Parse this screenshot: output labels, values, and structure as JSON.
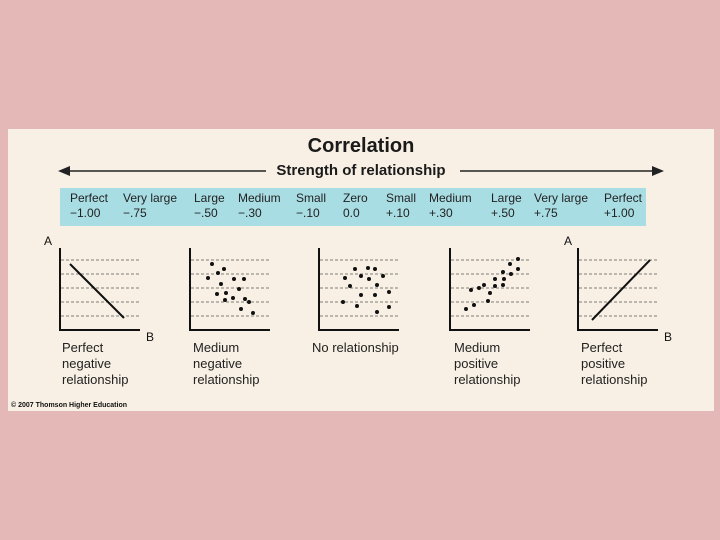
{
  "title": "Correlation",
  "subtitle": "Strength of relationship",
  "scale": [
    {
      "label": "Perfect",
      "value": "−1.00"
    },
    {
      "label": "Very large",
      "value": "−.75"
    },
    {
      "label": "Large",
      "value": "−.50"
    },
    {
      "label": "Medium",
      "value": "−.30"
    },
    {
      "label": "Small",
      "value": "−.10"
    },
    {
      "label": "Zero",
      "value": "0.0"
    },
    {
      "label": "Small",
      "value": "+.10"
    },
    {
      "label": "Medium",
      "value": "+.30"
    },
    {
      "label": "Large",
      "value": "+.50"
    },
    {
      "label": "Very large",
      "value": "+.75"
    },
    {
      "label": "Perfect",
      "value": "+1.00"
    }
  ],
  "graphs": [
    {
      "caption": [
        "Perfect",
        "negative",
        "relationship"
      ],
      "axis_y": "A",
      "axis_x": "B"
    },
    {
      "caption": [
        "Medium",
        "negative",
        "relationship"
      ]
    },
    {
      "caption": [
        "No relationship"
      ]
    },
    {
      "caption": [
        "Medium",
        "positive",
        "relationship"
      ]
    },
    {
      "caption": [
        "Perfect",
        "positive",
        "relationship"
      ],
      "axis_y": "A",
      "axis_x": "B"
    }
  ],
  "copyright": "© 2007 Thomson Higher Education",
  "colors": {
    "band": "#a8dde3",
    "panel": "#f8f0e4",
    "background": "#e5b8b8"
  }
}
